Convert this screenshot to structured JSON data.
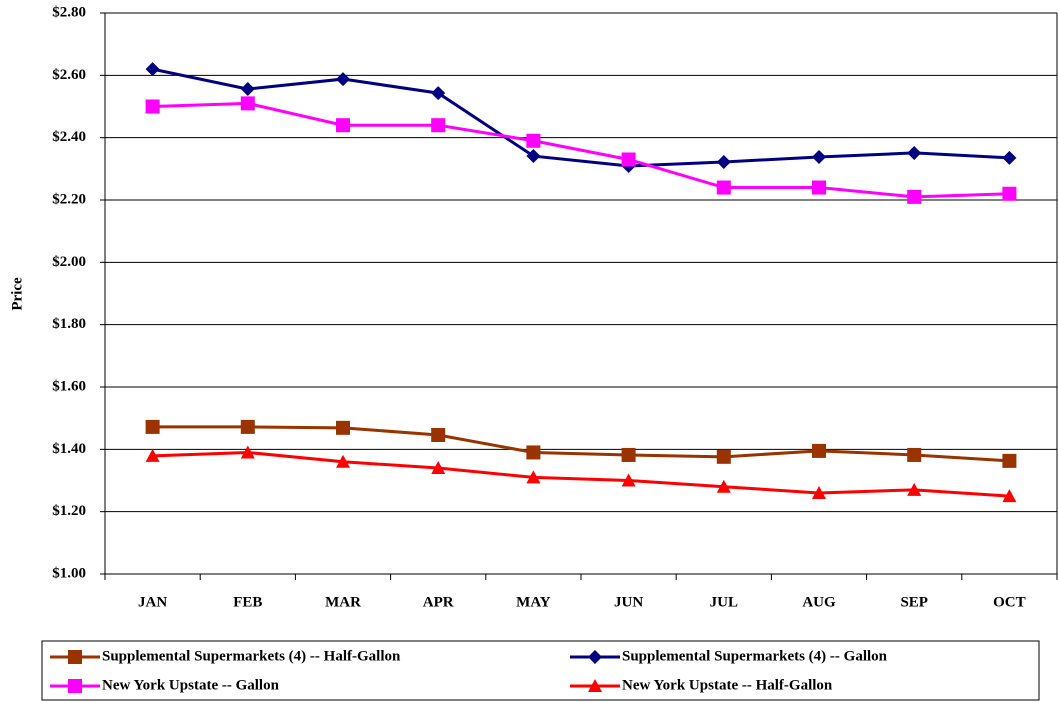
{
  "chart_data": {
    "type": "line",
    "y_label": "Price",
    "categories": [
      "JAN",
      "FEB",
      "MAR",
      "APR",
      "MAY",
      "JUN",
      "JUL",
      "AUG",
      "SEP",
      "OCT"
    ],
    "series": [
      {
        "name": "Supplemental Supermarkets (4) -- Half-Gallon",
        "color": "#993300",
        "marker": "square",
        "values": [
          1.472,
          1.472,
          1.469,
          1.446,
          1.39,
          1.382,
          1.376,
          1.395,
          1.382,
          1.363
        ]
      },
      {
        "name": "Supplemental Supermarkets (4) -- Gallon",
        "color": "#000080",
        "marker": "diamond",
        "values": [
          2.62,
          2.556,
          2.588,
          2.543,
          2.341,
          2.309,
          2.322,
          2.338,
          2.351,
          2.335
        ]
      },
      {
        "name": "New York Upstate -- Gallon",
        "color": "#ff00ff",
        "marker": "square",
        "values": [
          2.5,
          2.51,
          2.44,
          2.44,
          2.39,
          2.33,
          2.24,
          2.24,
          2.21,
          2.22
        ]
      },
      {
        "name": "New York Upstate -- Half-Gallon",
        "color": "#ff0000",
        "marker": "triangle",
        "values": [
          1.379,
          1.39,
          1.36,
          1.34,
          1.31,
          1.3,
          1.28,
          1.26,
          1.27,
          1.25
        ]
      }
    ],
    "ylim": [
      1.0,
      2.8
    ],
    "yticks": [
      {
        "value": 1.0,
        "label": "$1.00"
      },
      {
        "value": 1.2,
        "label": "$1.20"
      },
      {
        "value": 1.4,
        "label": "$1.40"
      },
      {
        "value": 1.6,
        "label": "$1.60"
      },
      {
        "value": 1.8,
        "label": "$1.80"
      },
      {
        "value": 2.0,
        "label": "$2.00"
      },
      {
        "value": 2.2,
        "label": "$2.20"
      },
      {
        "value": 2.4,
        "label": "$2.40"
      },
      {
        "value": 2.6,
        "label": "$2.60"
      },
      {
        "value": 2.8,
        "label": "$2.80"
      }
    ],
    "grid": true,
    "legend": "bottom"
  }
}
